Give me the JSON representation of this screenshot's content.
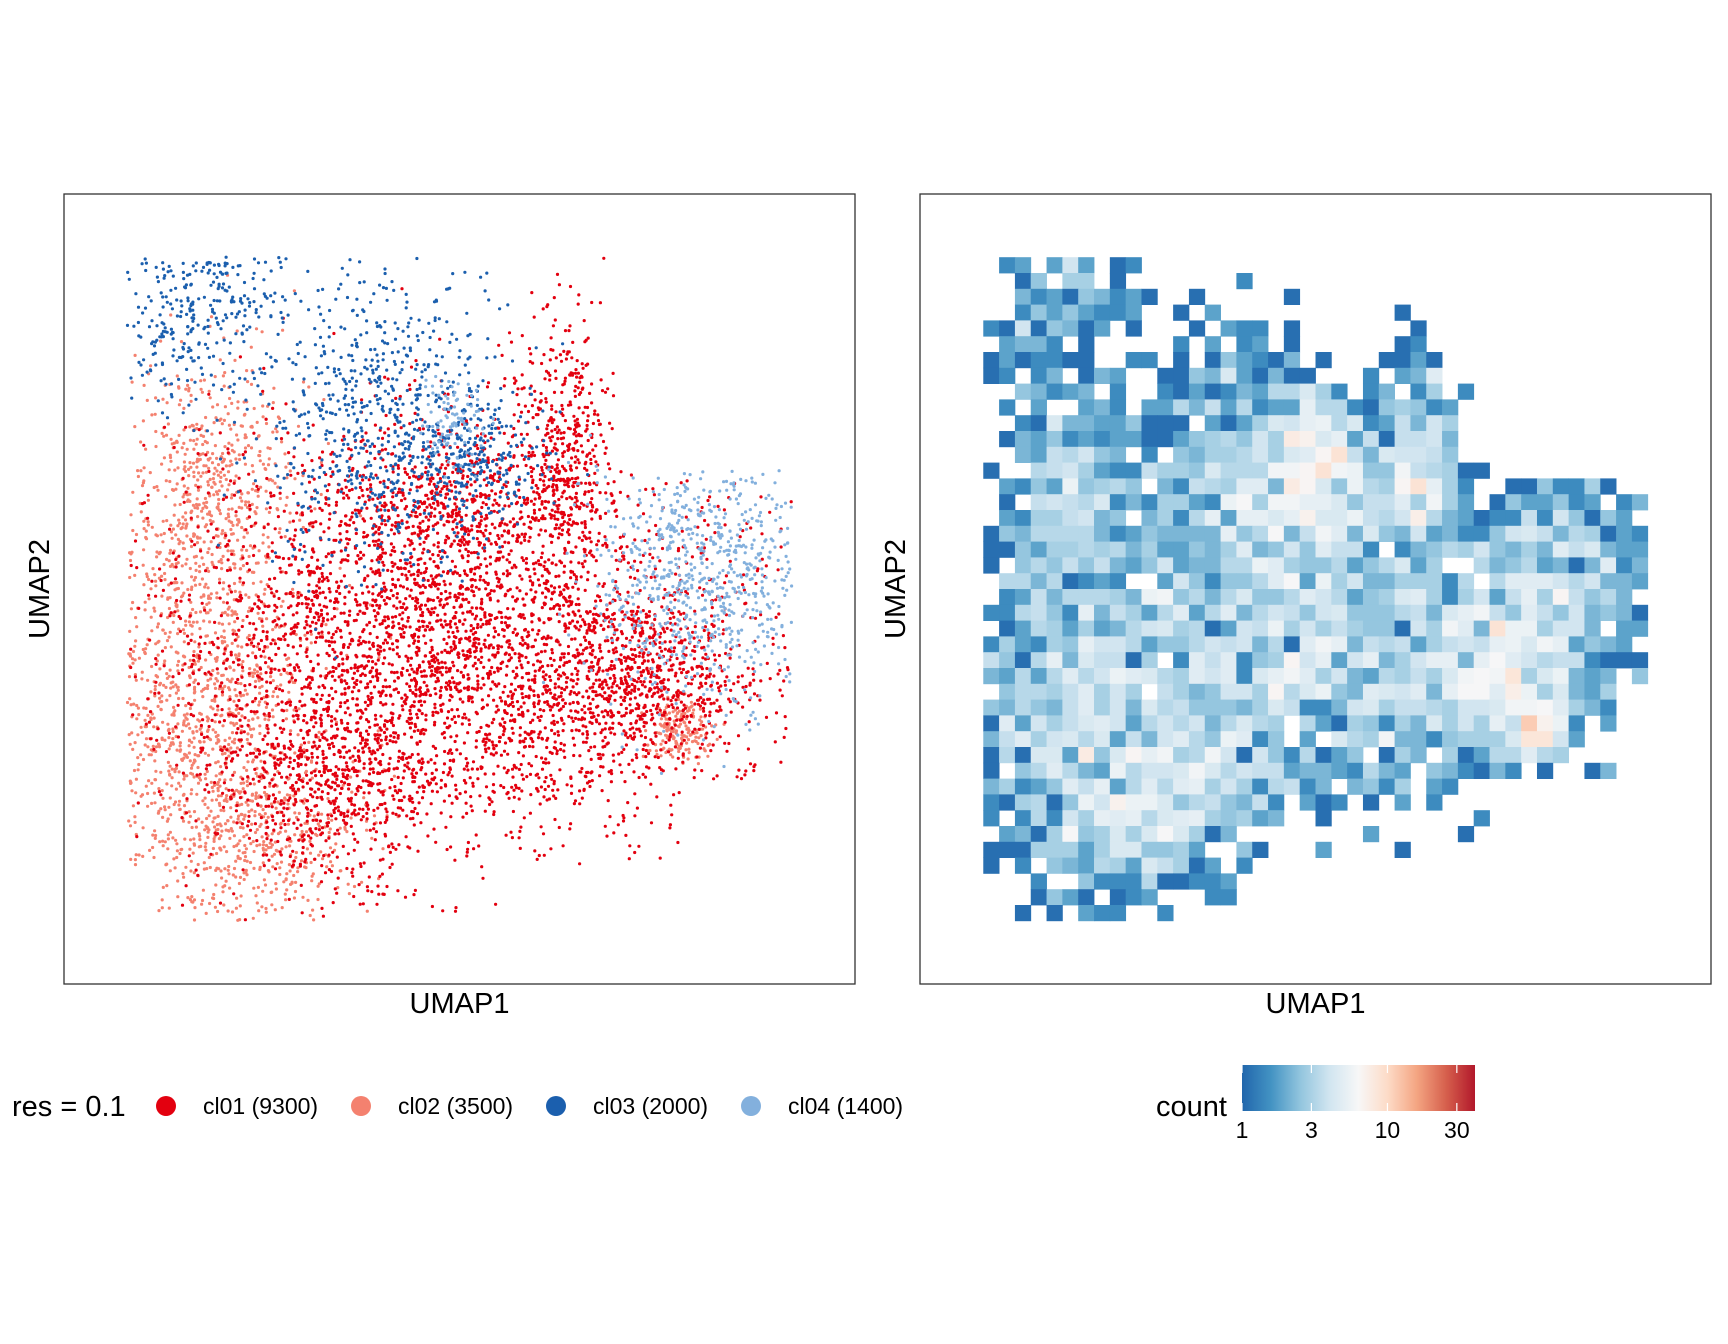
{
  "chart_data": [
    {
      "type": "scatter",
      "xlabel": "UMAP1",
      "ylabel": "UMAP2",
      "grid": false,
      "axis_ticks": false,
      "legend": {
        "title": "res = 0.1",
        "placement": "bottom",
        "entries": [
          {
            "label": "cl01 (9300)",
            "color": "#e3000f",
            "n": 9300
          },
          {
            "label": "cl02 (3500)",
            "color": "#f4816f",
            "n": 3500
          },
          {
            "label": "cl03 (2000)",
            "color": "#1b5fae",
            "n": 2000
          },
          {
            "label": "cl04 (1400)",
            "color": "#83b0dd",
            "n": 1400
          }
        ]
      },
      "clusters": [
        {
          "name": "cl01",
          "color": "#e3000f",
          "blobs": [
            [
              0.58,
              0.58,
              0.17,
              0.12,
              0.34
            ],
            [
              0.38,
              0.58,
              0.13,
              0.14,
              0.3
            ],
            [
              0.48,
              0.4,
              0.08,
              0.06,
              0.1
            ],
            [
              0.63,
              0.32,
              0.03,
              0.09,
              0.08
            ],
            [
              0.72,
              0.62,
              0.07,
              0.05,
              0.1
            ],
            [
              0.33,
              0.75,
              0.07,
              0.06,
              0.08
            ]
          ]
        },
        {
          "name": "cl02",
          "color": "#f4816f",
          "blobs": [
            [
              0.17,
              0.67,
              0.08,
              0.14,
              0.55
            ],
            [
              0.19,
              0.38,
              0.05,
              0.09,
              0.23
            ],
            [
              0.25,
              0.82,
              0.07,
              0.05,
              0.14
            ],
            [
              0.78,
              0.68,
              0.02,
              0.02,
              0.08
            ]
          ]
        },
        {
          "name": "cl03",
          "color": "#1b5fae",
          "blobs": [
            [
              0.4,
              0.28,
              0.08,
              0.1,
              0.55
            ],
            [
              0.17,
              0.14,
              0.06,
              0.07,
              0.3
            ],
            [
              0.52,
              0.34,
              0.04,
              0.04,
              0.15
            ]
          ]
        },
        {
          "name": "cl04",
          "color": "#83b0dd",
          "blobs": [
            [
              0.81,
              0.48,
              0.07,
              0.09,
              0.88
            ],
            [
              0.49,
              0.29,
              0.02,
              0.03,
              0.12
            ]
          ]
        }
      ]
    },
    {
      "type": "heatmap",
      "xlabel": "UMAP1",
      "ylabel": "UMAP2",
      "grid": false,
      "axis_ticks": false,
      "value_name": "count",
      "scale": "log",
      "range": [
        1,
        40
      ],
      "colorscale": [
        "#2166ac",
        "#4393c3",
        "#92c5de",
        "#d1e5f0",
        "#f7f7f7",
        "#fddbc7",
        "#f4a582",
        "#d6604d",
        "#b2182b"
      ],
      "legend": {
        "title": "count",
        "placement": "bottom",
        "ticks": [
          {
            "value": 1,
            "label": "1"
          },
          {
            "value": 3,
            "label": "3"
          },
          {
            "value": 10,
            "label": "10"
          },
          {
            "value": 30,
            "label": "30"
          }
        ]
      },
      "grid_cells": [
        50,
        50
      ]
    }
  ]
}
